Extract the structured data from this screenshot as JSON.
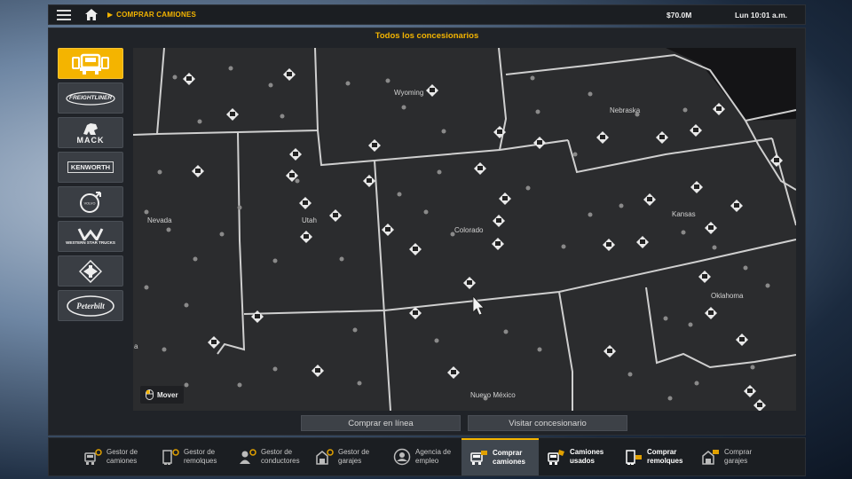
{
  "topbar": {
    "breadcrumb": "COMPRAR CAMIONES",
    "money": "$70.0M",
    "time": "Lun 10:01 a.m."
  },
  "panel": {
    "title": "Todos los concesionarios"
  },
  "brands": [
    {
      "name": "all-trucks",
      "label": "",
      "active": true
    },
    {
      "name": "freightliner",
      "label": "FREIGHTLINER"
    },
    {
      "name": "mack",
      "label": "MACK"
    },
    {
      "name": "kenworth",
      "label": "KENWORTH"
    },
    {
      "name": "volvo",
      "label": "VOLVO"
    },
    {
      "name": "western-star",
      "label": "WESTERN STAR TRUCKS"
    },
    {
      "name": "international",
      "label": ""
    },
    {
      "name": "peterbilt",
      "label": "Peterbilt"
    }
  ],
  "map": {
    "states": {
      "nevada": "Nevada",
      "utah": "Utah",
      "wyoming": "Wyoming",
      "colorado": "Colorado",
      "nebraska": "Nebraska",
      "kansas": "Kansas",
      "oklahoma": "Oklahoma",
      "new_mexico": "Nuevo México",
      "cut_label": "a"
    },
    "mover_label": "Mover"
  },
  "actions": {
    "buy_online": "Comprar en línea",
    "visit_dealer": "Visitar concesionario"
  },
  "bottom_nav": [
    {
      "l1": "Gestor de",
      "l2": "camiones",
      "icon": "truck-gear-icon"
    },
    {
      "l1": "Gestor de",
      "l2": "remolques",
      "icon": "trailer-gear-icon"
    },
    {
      "l1": "Gestor de",
      "l2": "conductores",
      "icon": "driver-gear-icon"
    },
    {
      "l1": "Gestor de",
      "l2": "garajes",
      "icon": "garage-gear-icon"
    },
    {
      "l1": "Agencia de",
      "l2": "empleo",
      "icon": "employment-agency-icon"
    },
    {
      "l1": "Comprar",
      "l2": "camiones",
      "icon": "buy-truck-icon",
      "active": true
    },
    {
      "l1": "Camiones",
      "l2": "usados",
      "icon": "used-truck-icon"
    },
    {
      "l1": "Comprar",
      "l2": "remolques",
      "icon": "buy-trailer-icon"
    },
    {
      "l1": "Comprar",
      "l2": "garajes",
      "icon": "buy-garage-icon"
    }
  ],
  "colors": {
    "accent": "#f4b400",
    "map_bg": "#2b2c2e",
    "border": "#c9c9c9"
  }
}
